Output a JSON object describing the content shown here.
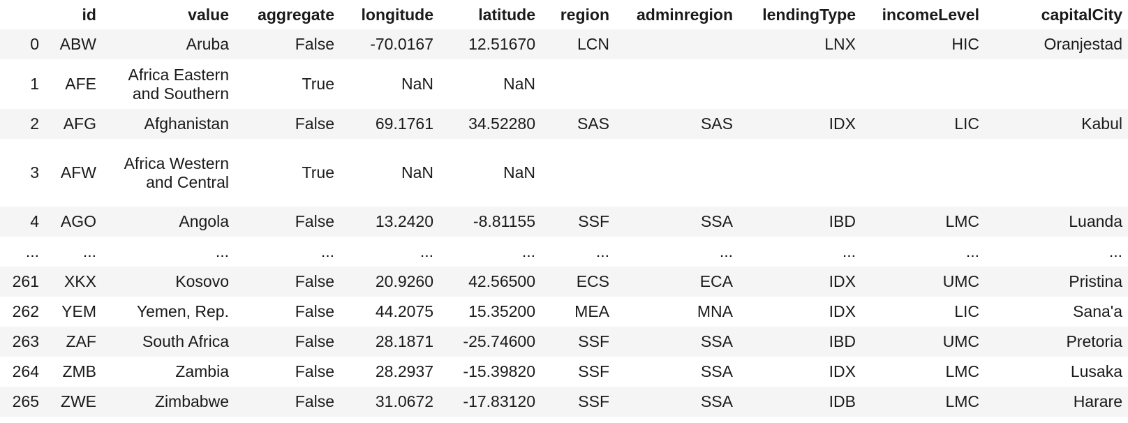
{
  "table": {
    "columns": [
      "",
      "id",
      "value",
      "aggregate",
      "longitude",
      "latitude",
      "region",
      "adminregion",
      "lendingType",
      "incomeLevel",
      "capitalCity"
    ],
    "rows": [
      {
        "cells": [
          "0",
          "ABW",
          "Aruba",
          "False",
          "-70.0167",
          "12.51670",
          "LCN",
          "",
          "LNX",
          "HIC",
          "Oranjestad"
        ],
        "lines": 1
      },
      {
        "cells": [
          "1",
          "AFE",
          "Africa Eastern and Southern",
          "True",
          "NaN",
          "NaN",
          "",
          "",
          "",
          "",
          ""
        ],
        "lines": 2
      },
      {
        "cells": [
          "2",
          "AFG",
          "Afghanistan",
          "False",
          "69.1761",
          "34.52280",
          "SAS",
          "SAS",
          "IDX",
          "LIC",
          "Kabul"
        ],
        "lines": 1
      },
      {
        "cells": [
          "3",
          "AFW",
          "Africa Western and Central",
          "True",
          "NaN",
          "NaN",
          "",
          "",
          "",
          "",
          ""
        ],
        "lines": 3
      },
      {
        "cells": [
          "4",
          "AGO",
          "Angola",
          "False",
          "13.2420",
          "-8.81155",
          "SSF",
          "SSA",
          "IBD",
          "LMC",
          "Luanda"
        ],
        "lines": 1
      },
      {
        "cells": [
          "...",
          "...",
          "...",
          "...",
          "...",
          "...",
          "...",
          "...",
          "...",
          "...",
          "..."
        ],
        "lines": 0
      },
      {
        "cells": [
          "261",
          "XKX",
          "Kosovo",
          "False",
          "20.9260",
          "42.56500",
          "ECS",
          "ECA",
          "IDX",
          "UMC",
          "Pristina"
        ],
        "lines": 1
      },
      {
        "cells": [
          "262",
          "YEM",
          "Yemen, Rep.",
          "False",
          "44.2075",
          "15.35200",
          "MEA",
          "MNA",
          "IDX",
          "LIC",
          "Sana'a"
        ],
        "lines": 1
      },
      {
        "cells": [
          "263",
          "ZAF",
          "South Africa",
          "False",
          "28.1871",
          "-25.74600",
          "SSF",
          "SSA",
          "IBD",
          "UMC",
          "Pretoria"
        ],
        "lines": 1
      },
      {
        "cells": [
          "264",
          "ZMB",
          "Zambia",
          "False",
          "28.2937",
          "-15.39820",
          "SSF",
          "SSA",
          "IDX",
          "LMC",
          "Lusaka"
        ],
        "lines": 1
      },
      {
        "cells": [
          "265",
          "ZWE",
          "Zimbabwe",
          "False",
          "31.0672",
          "-17.83120",
          "SSF",
          "SSA",
          "IDB",
          "LMC",
          "Harare"
        ],
        "lines": 1
      }
    ]
  }
}
